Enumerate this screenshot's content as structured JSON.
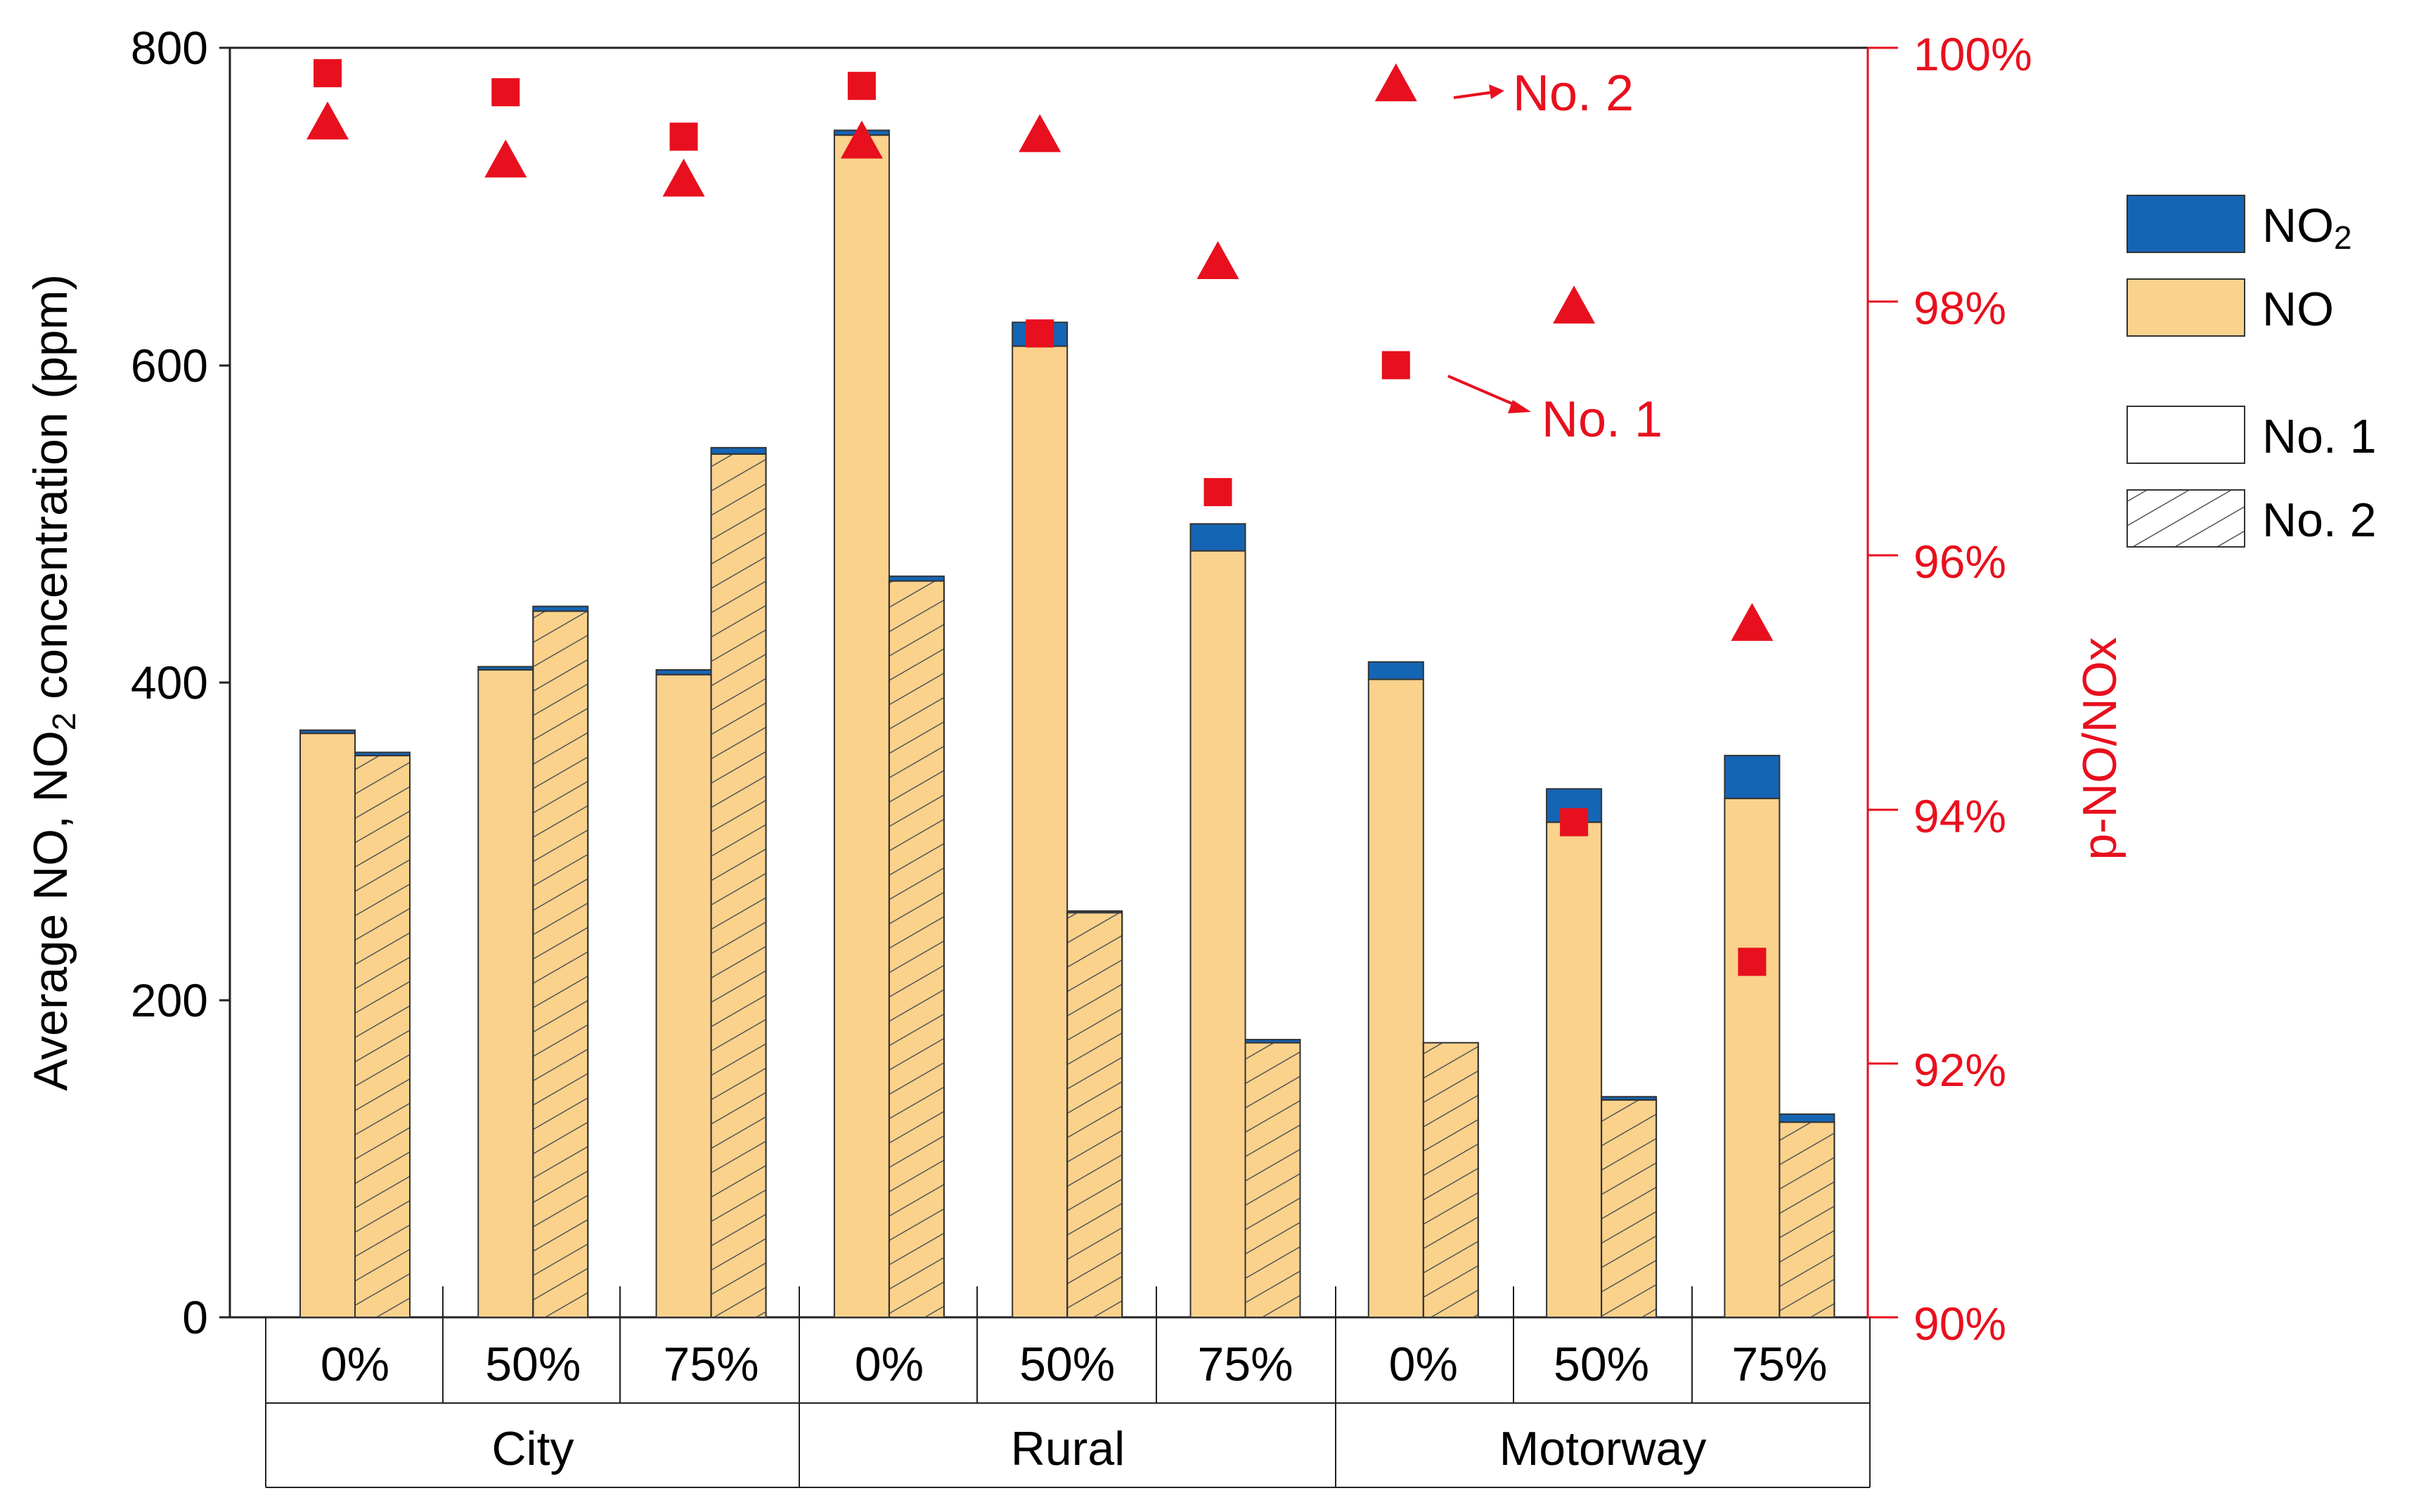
{
  "chart_data": {
    "type": "bar",
    "title": "",
    "ylabel": "Average NO, NO2 concentration (ppm)",
    "ylabel_parts": [
      "Average NO, NO",
      "2",
      " concentration (ppm)"
    ],
    "y2label": "p-NO/NOx",
    "ylim": [
      0,
      800
    ],
    "y_ticks": [
      "0",
      "200",
      "400",
      "600",
      "800"
    ],
    "y2lim": [
      90,
      100
    ],
    "y2_ticks": [
      "90%",
      "92%",
      "94%",
      "96%",
      "98%",
      "100%"
    ],
    "load_labels": [
      "0%",
      "50%",
      "75%",
      "0%",
      "50%",
      "75%",
      "0%",
      "50%",
      "75%"
    ],
    "group_labels": [
      "City",
      "Rural",
      "Motorway"
    ],
    "series": [
      {
        "name": "No. 1",
        "NO": [
          368,
          408,
          405,
          745,
          612,
          483,
          402,
          312,
          327
        ],
        "NO2": [
          2,
          2,
          3,
          3,
          15,
          17,
          11,
          21,
          27
        ],
        "p_NO_NOx": [
          99.8,
          99.65,
          99.3,
          99.7,
          97.75,
          96.5,
          97.5,
          93.9,
          92.8
        ]
      },
      {
        "name": "No. 2",
        "NO": [
          354,
          445,
          544,
          464,
          255,
          173,
          173,
          137,
          123
        ],
        "NO2": [
          2,
          3,
          4,
          3,
          1,
          2,
          0,
          2,
          5
        ],
        "p_NO_NOx": [
          99.4,
          99.1,
          98.95,
          99.25,
          99.3,
          98.3,
          99.7,
          97.95,
          95.45
        ]
      }
    ],
    "colors": {
      "NO": "#fad28c",
      "NO2": "#1565b5",
      "accent": "#e8101e"
    },
    "legend": {
      "placement": "right",
      "items": [
        "NO2",
        "NO",
        "No. 1",
        "No. 2"
      ],
      "no2_parts": [
        "NO",
        "2"
      ]
    },
    "annotations": [
      {
        "text": "No. 1",
        "marker": "square",
        "series": "No. 1",
        "index": 6
      },
      {
        "text": "No. 2",
        "marker": "triangle",
        "series": "No. 2",
        "index": 6
      }
    ]
  }
}
